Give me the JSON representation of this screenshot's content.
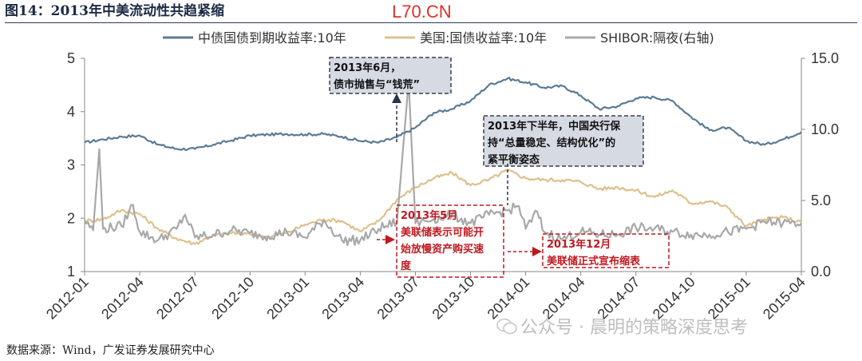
{
  "header": {
    "title": "图14：2013年中美流动性共趋紧缩",
    "watermark": "L70.CN"
  },
  "footer": {
    "source": "数据来源：Wind，广发证券发展研究中心",
    "wechat": "公众号 · 晨明的策略深度思考"
  },
  "colors": {
    "cn10y": "#5b7b93",
    "us10y": "#ddc08e",
    "shibor": "#a8a8a8",
    "annotation_red": "#c0181f",
    "annotation_box_fill": "#d6dae3"
  },
  "chart_data": {
    "type": "line",
    "title": "",
    "x_ticks": [
      "2012-01",
      "2012-04",
      "2012-07",
      "2012-10",
      "2013-01",
      "2013-04",
      "2013-07",
      "2013-10",
      "2014-01",
      "2014-04",
      "2014-07",
      "2014-10",
      "2015-01",
      "2015-04"
    ],
    "x_range": [
      "2012-01",
      "2015-04"
    ],
    "y_left": {
      "range": [
        1,
        5
      ],
      "ticks": [
        "1",
        "2",
        "3",
        "4",
        "5"
      ]
    },
    "y_right": {
      "range": [
        0,
        15
      ],
      "ticks": [
        "0.0",
        "5.0",
        "10.0",
        "15.0"
      ],
      "label": "右轴"
    },
    "grid": false,
    "legend_position": "top-center",
    "series": [
      {
        "name": "中债国债到期收益率:10年",
        "axis": "left",
        "points": [
          [
            "2012-01",
            3.42
          ],
          [
            "2012-02",
            3.48
          ],
          [
            "2012-03",
            3.53
          ],
          [
            "2012-04",
            3.55
          ],
          [
            "2012-05",
            3.38
          ],
          [
            "2012-06",
            3.3
          ],
          [
            "2012-07",
            3.3
          ],
          [
            "2012-08",
            3.38
          ],
          [
            "2012-09",
            3.46
          ],
          [
            "2012-10",
            3.55
          ],
          [
            "2012-11",
            3.57
          ],
          [
            "2012-12",
            3.58
          ],
          [
            "2013-01",
            3.57
          ],
          [
            "2013-02",
            3.58
          ],
          [
            "2013-03",
            3.53
          ],
          [
            "2013-04",
            3.45
          ],
          [
            "2013-05",
            3.42
          ],
          [
            "2013-06",
            3.52
          ],
          [
            "2013-07",
            3.7
          ],
          [
            "2013-08",
            3.98
          ],
          [
            "2013-09",
            4.05
          ],
          [
            "2013-10",
            4.2
          ],
          [
            "2013-11",
            4.5
          ],
          [
            "2013-12",
            4.62
          ],
          [
            "2014-01",
            4.55
          ],
          [
            "2014-02",
            4.45
          ],
          [
            "2014-03",
            4.48
          ],
          [
            "2014-04",
            4.3
          ],
          [
            "2014-05",
            4.05
          ],
          [
            "2014-06",
            4.1
          ],
          [
            "2014-07",
            4.25
          ],
          [
            "2014-08",
            4.27
          ],
          [
            "2014-09",
            4.2
          ],
          [
            "2014-10",
            3.9
          ],
          [
            "2014-11",
            3.65
          ],
          [
            "2014-12",
            3.7
          ],
          [
            "2015-01",
            3.45
          ],
          [
            "2015-02",
            3.38
          ],
          [
            "2015-03",
            3.48
          ],
          [
            "2015-04",
            3.62
          ]
        ]
      },
      {
        "name": "美国:国债收益率:10年",
        "axis": "left",
        "points": [
          [
            "2012-01",
            1.95
          ],
          [
            "2012-02",
            1.98
          ],
          [
            "2012-03",
            2.15
          ],
          [
            "2012-04",
            2.08
          ],
          [
            "2012-05",
            1.8
          ],
          [
            "2012-06",
            1.62
          ],
          [
            "2012-07",
            1.52
          ],
          [
            "2012-08",
            1.68
          ],
          [
            "2012-09",
            1.72
          ],
          [
            "2012-10",
            1.7
          ],
          [
            "2012-11",
            1.65
          ],
          [
            "2012-12",
            1.72
          ],
          [
            "2013-01",
            1.88
          ],
          [
            "2013-02",
            1.98
          ],
          [
            "2013-03",
            1.95
          ],
          [
            "2013-04",
            1.75
          ],
          [
            "2013-05",
            1.95
          ],
          [
            "2013-06",
            2.35
          ],
          [
            "2013-07",
            2.58
          ],
          [
            "2013-08",
            2.75
          ],
          [
            "2013-09",
            2.85
          ],
          [
            "2013-10",
            2.62
          ],
          [
            "2013-11",
            2.72
          ],
          [
            "2013-12",
            2.9
          ],
          [
            "2014-01",
            2.75
          ],
          [
            "2014-02",
            2.72
          ],
          [
            "2014-03",
            2.72
          ],
          [
            "2014-04",
            2.68
          ],
          [
            "2014-05",
            2.55
          ],
          [
            "2014-06",
            2.58
          ],
          [
            "2014-07",
            2.52
          ],
          [
            "2014-08",
            2.4
          ],
          [
            "2014-09",
            2.52
          ],
          [
            "2014-10",
            2.28
          ],
          [
            "2014-11",
            2.32
          ],
          [
            "2014-12",
            2.2
          ],
          [
            "2015-01",
            1.85
          ],
          [
            "2015-02",
            1.98
          ],
          [
            "2015-03",
            2.02
          ],
          [
            "2015-04",
            1.92
          ]
        ]
      },
      {
        "name": "SHIBOR:隔夜(右轴)",
        "axis": "right",
        "points": [
          [
            "2012-01",
            3.6
          ],
          [
            "2012-01-15",
            2.9
          ],
          [
            "2012-01-25",
            8.6
          ],
          [
            "2012-02",
            3.0
          ],
          [
            "2012-03",
            3.2
          ],
          [
            "2012-03-20",
            4.7
          ],
          [
            "2012-04",
            2.8
          ],
          [
            "2012-05",
            2.2
          ],
          [
            "2012-06",
            3.0
          ],
          [
            "2012-06-15",
            4.0
          ],
          [
            "2012-07",
            2.4
          ],
          [
            "2012-08",
            2.6
          ],
          [
            "2012-09",
            2.9
          ],
          [
            "2012-10",
            2.7
          ],
          [
            "2012-11",
            2.5
          ],
          [
            "2012-12",
            2.8
          ],
          [
            "2013-01",
            2.4
          ],
          [
            "2013-02",
            3.6
          ],
          [
            "2013-03",
            2.2
          ],
          [
            "2013-04",
            2.2
          ],
          [
            "2013-05",
            3.0
          ],
          [
            "2013-06",
            3.5
          ],
          [
            "2013-06-20",
            13.4
          ],
          [
            "2013-07",
            3.4
          ],
          [
            "2013-08",
            3.7
          ],
          [
            "2013-09",
            4.0
          ],
          [
            "2013-10",
            3.4
          ],
          [
            "2013-11",
            4.0
          ],
          [
            "2013-12",
            4.3
          ],
          [
            "2013-12-20",
            4.6
          ],
          [
            "2014-01",
            3.0
          ],
          [
            "2014-01-20",
            4.2
          ],
          [
            "2014-02",
            2.8
          ],
          [
            "2014-03",
            2.3
          ],
          [
            "2014-04",
            2.8
          ],
          [
            "2014-05",
            2.6
          ],
          [
            "2014-06",
            2.6
          ],
          [
            "2014-07",
            3.1
          ],
          [
            "2014-08",
            3.0
          ],
          [
            "2014-09",
            2.8
          ],
          [
            "2014-10",
            2.6
          ],
          [
            "2014-11",
            2.6
          ],
          [
            "2014-12",
            2.8
          ],
          [
            "2015-01",
            3.0
          ],
          [
            "2015-02",
            3.5
          ],
          [
            "2015-03",
            3.4
          ],
          [
            "2015-04",
            3.4
          ]
        ]
      }
    ],
    "annotations": [
      {
        "id": "jun2013",
        "lines": [
          "2013年6月，",
          "债市抛售与“钱荒”"
        ],
        "style": "gray"
      },
      {
        "id": "h2-2013",
        "lines": [
          "2013年下半年，中国央行保",
          "持“总量稳定、结构优化”的",
          "紧平衡姿态"
        ],
        "style": "gray"
      },
      {
        "id": "may2013",
        "lines": [
          "2013年5月",
          "美联储表示可能开",
          "始放慢资产购买速",
          "度"
        ],
        "style": "red"
      },
      {
        "id": "dec2013",
        "lines": [
          "2013年12月",
          "美联储正式宣布缩表"
        ],
        "style": "red"
      }
    ]
  }
}
